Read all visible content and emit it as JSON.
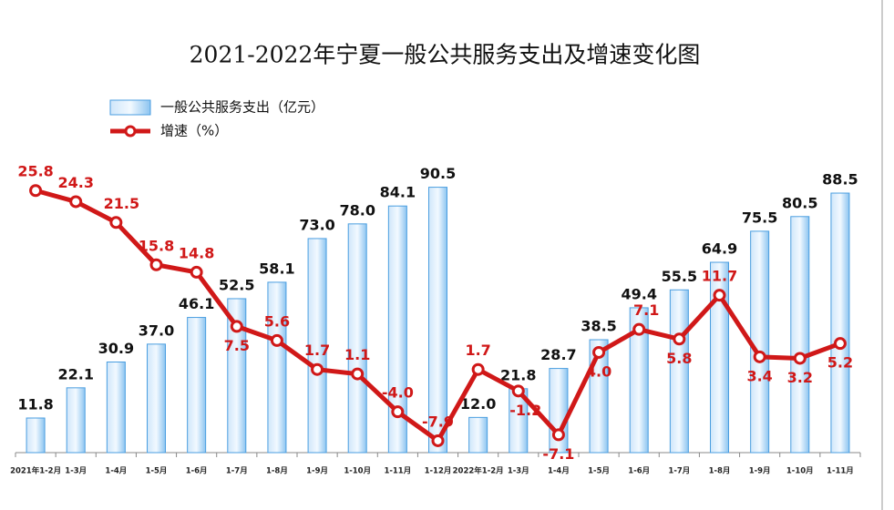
{
  "chart_data": {
    "type": "bar_line",
    "title": "2021-2022年宁夏一般公共服务支出及增速变化图",
    "categories": [
      "2021年1-2月",
      "1-3月",
      "1-4月",
      "1-5月",
      "1-6月",
      "1-7月",
      "1-8月",
      "1-9月",
      "1-10月",
      "1-11月",
      "1-12月",
      "2022年1-2月",
      "1-3月",
      "1-4月",
      "1-5月",
      "1-6月",
      "1-7月",
      "1-8月",
      "1-9月",
      "1-10月",
      "1-11月"
    ],
    "series": [
      {
        "name": "一般公共服务支出（亿元）",
        "type": "bar",
        "color": "#4a9ee0",
        "values": [
          11.8,
          22.1,
          30.9,
          37.0,
          46.1,
          52.5,
          58.1,
          73.0,
          78.0,
          84.1,
          90.5,
          12.0,
          21.8,
          28.7,
          38.5,
          49.4,
          55.5,
          64.9,
          75.5,
          80.5,
          88.5
        ],
        "value_labels": [
          "11.8",
          "22.1",
          "30.9",
          "37.0",
          "46.1",
          "52.5",
          "58.1",
          "73.0",
          "78.0",
          "84.1",
          "90.5",
          "12.0",
          "21.8",
          "28.7",
          "38.5",
          "49.4",
          "55.5",
          "64.9",
          "75.5",
          "80.5",
          "88.5"
        ]
      },
      {
        "name": "增速（%）",
        "type": "line",
        "axis": "y2",
        "color": "#d01818",
        "values": [
          25.8,
          24.3,
          21.5,
          15.8,
          14.8,
          7.5,
          5.6,
          1.7,
          1.1,
          -4.0,
          -7.9,
          1.7,
          -1.2,
          -7.1,
          4.0,
          7.1,
          5.8,
          11.7,
          3.4,
          3.2,
          5.2
        ],
        "value_labels": [
          "25.8",
          "24.3",
          "21.5",
          "15.8",
          "14.8",
          "7.5",
          "5.6",
          "1.7",
          "1.1",
          "-4.0",
          "-7.9",
          "1.7",
          "-1.2",
          "-7.1",
          "4.0",
          "7.1",
          "5.8",
          "11.7",
          "3.4",
          "3.2",
          "5.2"
        ]
      }
    ],
    "ylim": [
      0,
      100
    ],
    "y2lim": [
      -9.5,
      30
    ]
  }
}
